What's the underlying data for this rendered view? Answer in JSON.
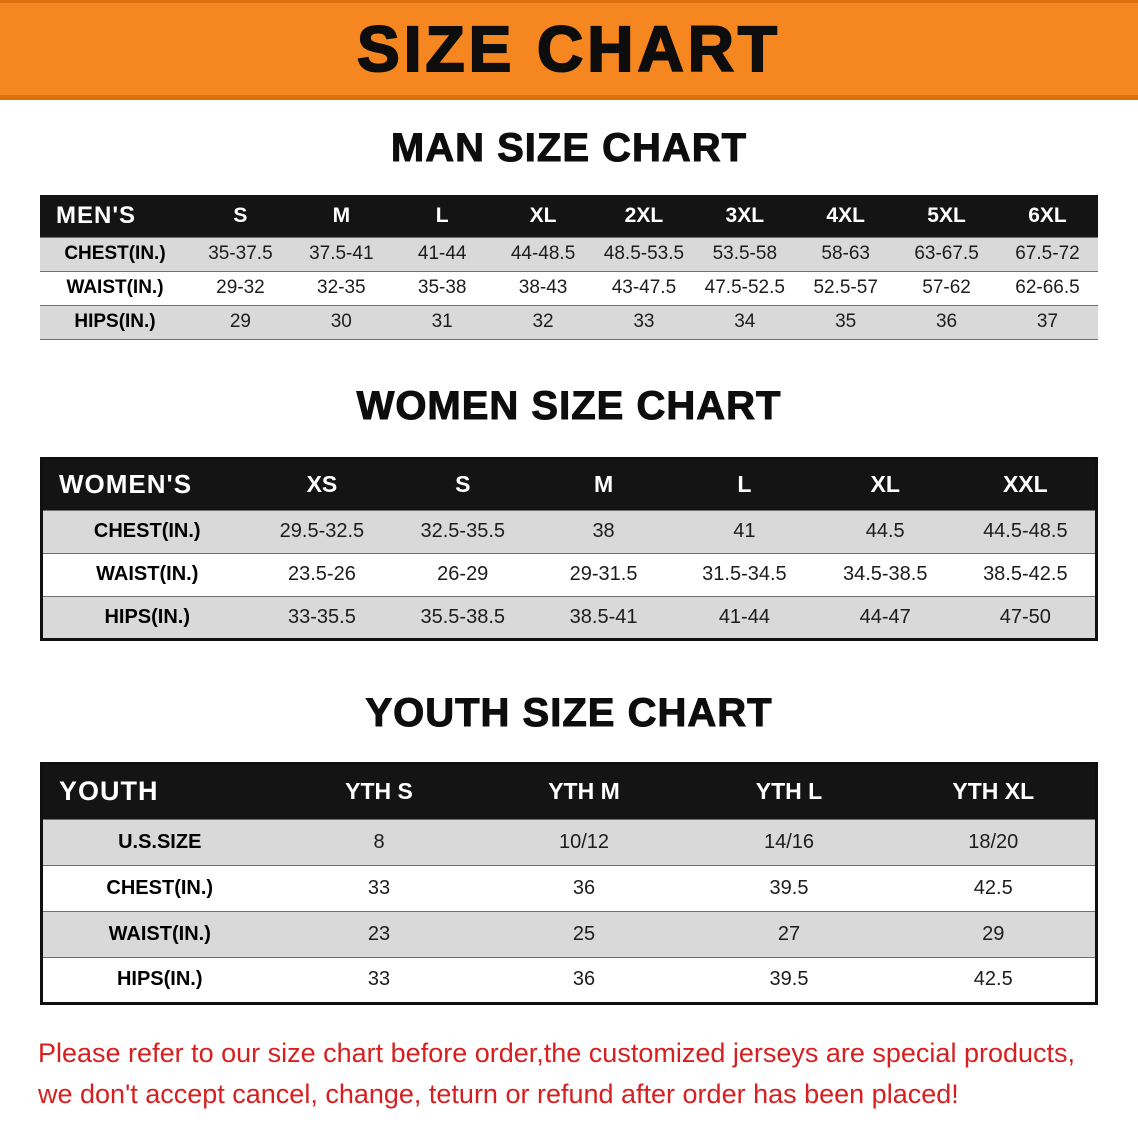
{
  "banner": {
    "title": "SIZE CHART"
  },
  "colors": {
    "banner_bg": "#f6861f",
    "header_bg": "#141414",
    "row_alt": "#d9d9d9",
    "footer_red": "#d71f1f"
  },
  "men": {
    "heading": "MAN SIZE CHART",
    "table": {
      "header": [
        "MEN'S",
        "S",
        "M",
        "L",
        "XL",
        "2XL",
        "3XL",
        "4XL",
        "5XL",
        "6XL"
      ],
      "rows": [
        [
          "CHEST(IN.)",
          "35-37.5",
          "37.5-41",
          "41-44",
          "44-48.5",
          "48.5-53.5",
          "53.5-58",
          "58-63",
          "63-67.5",
          "67.5-72"
        ],
        [
          "WAIST(IN.)",
          "29-32",
          "32-35",
          "35-38",
          "38-43",
          "43-47.5",
          "47.5-52.5",
          "52.5-57",
          "57-62",
          "62-66.5"
        ],
        [
          "HIPS(IN.)",
          "29",
          "30",
          "31",
          "32",
          "33",
          "34",
          "35",
          "36",
          "37"
        ]
      ]
    }
  },
  "women": {
    "heading": "WOMEN SIZE CHART",
    "table": {
      "header": [
        "WOMEN'S",
        "XS",
        "S",
        "M",
        "L",
        "XL",
        "XXL"
      ],
      "rows": [
        [
          "CHEST(IN.)",
          "29.5-32.5",
          "32.5-35.5",
          "38",
          "41",
          "44.5",
          "44.5-48.5"
        ],
        [
          "WAIST(IN.)",
          "23.5-26",
          "26-29",
          "29-31.5",
          "31.5-34.5",
          "34.5-38.5",
          "38.5-42.5"
        ],
        [
          "HIPS(IN.)",
          "33-35.5",
          "35.5-38.5",
          "38.5-41",
          "41-44",
          "44-47",
          "47-50"
        ]
      ]
    }
  },
  "youth": {
    "heading": "YOUTH SIZE CHART",
    "table": {
      "header": [
        "YOUTH",
        "YTH S",
        "YTH M",
        "YTH L",
        "YTH XL"
      ],
      "rows": [
        [
          "U.S.SIZE",
          "8",
          "10/12",
          "14/16",
          "18/20"
        ],
        [
          "CHEST(IN.)",
          "33",
          "36",
          "39.5",
          "42.5"
        ],
        [
          "WAIST(IN.)",
          "23",
          "25",
          "27",
          "29"
        ],
        [
          "HIPS(IN.)",
          "33",
          "36",
          "39.5",
          "42.5"
        ]
      ]
    }
  },
  "footer": {
    "line1": "Please refer to our size chart before order,the customized jerseys are special products,",
    "line2": "we don't accept cancel, change, teturn or refund after order has been placed!"
  }
}
